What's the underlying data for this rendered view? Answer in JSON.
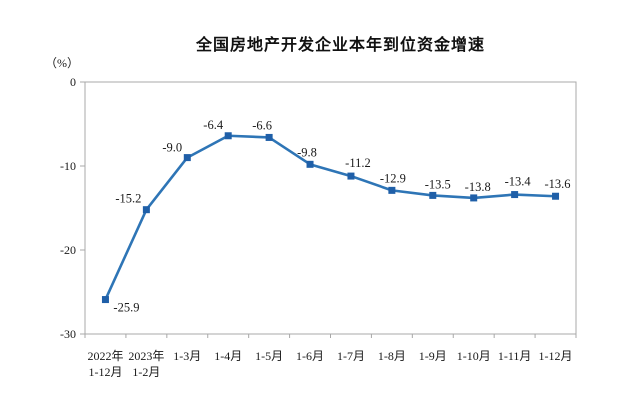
{
  "header": {
    "title": "全国房地产开发企业本年到位资金增速"
  },
  "chart_data": {
    "type": "line",
    "title": "全国房地产开发企业本年到位资金增速",
    "unit_label": "（%）",
    "categories": [
      [
        "2022年",
        "1-12月"
      ],
      [
        "2023年",
        "1-2月"
      ],
      [
        "1-3月"
      ],
      [
        "1-4月"
      ],
      [
        "1-5月"
      ],
      [
        "1-6月"
      ],
      [
        "1-7月"
      ],
      [
        "1-8月"
      ],
      [
        "1-9月"
      ],
      [
        "1-10月"
      ],
      [
        "1-11月"
      ],
      [
        "1-12月"
      ]
    ],
    "values": [
      -25.9,
      -15.2,
      -9.0,
      -6.4,
      -6.6,
      -9.8,
      -11.2,
      -12.9,
      -13.5,
      -13.8,
      -13.4,
      -13.6
    ],
    "labels": [
      "-25.9",
      "-15.2",
      "-9.0",
      "-6.4",
      "-6.6",
      "-9.8",
      "-11.2",
      "-12.9",
      "-13.5",
      "-13.8",
      "-13.4",
      "-13.6"
    ],
    "ylim": [
      -30,
      0
    ],
    "yticks": [
      0,
      -10,
      -20,
      -30
    ],
    "grid": false,
    "legend": "none",
    "marker_shape": "square",
    "colors": {
      "line": "#2E75B6",
      "marker": "#1F5FA8",
      "axis": "#A8A8A8",
      "text": "#1a1a1a"
    }
  }
}
